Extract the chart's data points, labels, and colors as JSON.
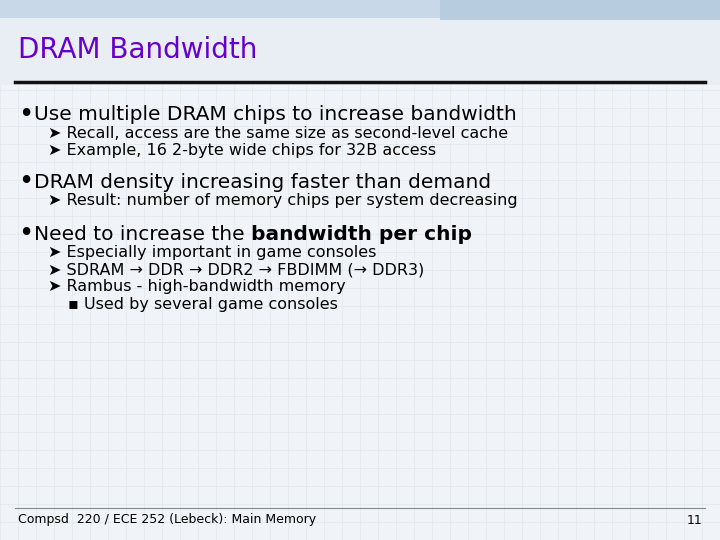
{
  "title": "DRAM Bandwidth",
  "title_color": "#6600CC",
  "bg_main": "#F0F4F8",
  "bg_header": "#E8EEF4",
  "bg_top_strip": "#C8D8E8",
  "line_color": "#111111",
  "bullet1": "Use multiple DRAM chips to increase bandwidth",
  "sub1a": "Recall, access are the same size as second-level cache",
  "sub1b": "Example, 16 2-byte wide chips for 32B access",
  "bullet2": "DRAM density increasing faster than demand",
  "sub2a": "Result: number of memory chips per system decreasing",
  "bullet3_normal": "Need to increase the ",
  "bullet3_bold": "bandwidth per chip",
  "sub3a": "Especially important in game consoles",
  "sub3b": "SDRAM → DDR → DDR2 → FBDIMM (→ DDR3)",
  "sub3c": "Rambus - high-bandwidth memory",
  "sub3d": "Used by several game consoles",
  "footer": "Compsd  220 / ECE 252 (Lebeck): Main Memory",
  "page_num": "11",
  "title_fontsize": 20,
  "bullet_fontsize": 14.5,
  "sub_fontsize": 11.5,
  "footer_fontsize": 9
}
